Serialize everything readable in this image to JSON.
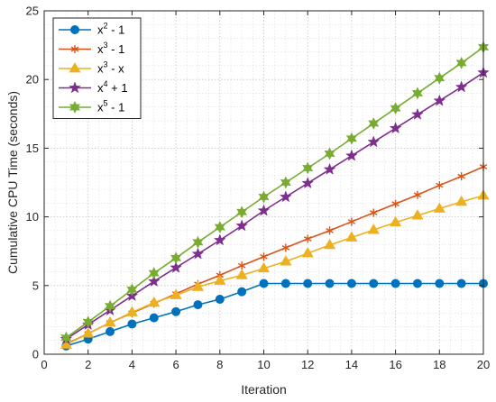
{
  "chart_data": {
    "type": "line",
    "title": "",
    "xlabel": "Iteration",
    "ylabel": "Cumulative CPU Time (seconds)",
    "xlim": [
      0,
      20
    ],
    "ylim": [
      0,
      25
    ],
    "xticks": [
      0,
      2,
      4,
      6,
      8,
      10,
      12,
      14,
      16,
      18,
      20
    ],
    "yticks": [
      0,
      5,
      10,
      15,
      20,
      25
    ],
    "grid": "major and minor, dotted",
    "legend_position": "top-left",
    "x": [
      1,
      2,
      3,
      4,
      5,
      6,
      7,
      8,
      9,
      10,
      11,
      12,
      13,
      14,
      15,
      16,
      17,
      18,
      19,
      20
    ],
    "series": [
      {
        "name": "x^2 - 1",
        "label_base": "x",
        "label_exp": "2",
        "label_rest": " - 1",
        "color": "#0072BD",
        "marker": "circle",
        "values": [
          0.6,
          1.1,
          1.65,
          2.2,
          2.65,
          3.1,
          3.6,
          4.0,
          4.55,
          5.15,
          5.15,
          5.15,
          5.15,
          5.15,
          5.15,
          5.15,
          5.15,
          5.15,
          5.15,
          5.15
        ]
      },
      {
        "name": "x^3 - 1",
        "label_base": "x",
        "label_exp": "3",
        "label_rest": " - 1",
        "color": "#D95319",
        "marker": "asterisk",
        "values": [
          0.75,
          1.5,
          2.3,
          3.0,
          3.7,
          4.4,
          5.1,
          5.75,
          6.45,
          7.1,
          7.75,
          8.4,
          9.0,
          9.65,
          10.3,
          10.95,
          11.6,
          12.3,
          12.95,
          13.65
        ]
      },
      {
        "name": "x^3 - x",
        "label_base": "x",
        "label_exp": "3",
        "label_rest": " - x",
        "color": "#EDB120",
        "marker": "triangle",
        "values": [
          0.7,
          1.5,
          2.3,
          3.05,
          3.75,
          4.3,
          4.9,
          5.35,
          5.75,
          6.25,
          6.75,
          7.35,
          7.95,
          8.5,
          9.05,
          9.6,
          10.1,
          10.6,
          11.1,
          11.55
        ]
      },
      {
        "name": "x^4 + 1",
        "label_base": "x",
        "label_exp": "4",
        "label_rest": " + 1",
        "color": "#7E2F8E",
        "marker": "star",
        "values": [
          1.1,
          2.15,
          3.2,
          4.25,
          5.3,
          6.3,
          7.3,
          8.3,
          9.35,
          10.45,
          11.45,
          12.45,
          13.45,
          14.45,
          15.45,
          16.45,
          17.45,
          18.45,
          19.45,
          20.5
        ]
      },
      {
        "name": "x^5 - 1",
        "label_base": "x",
        "label_exp": "5",
        "label_rest": " - 1",
        "color": "#77AC30",
        "marker": "hexagram",
        "values": [
          1.2,
          2.35,
          3.5,
          4.7,
          5.9,
          7.0,
          8.15,
          9.25,
          10.35,
          11.45,
          12.5,
          13.55,
          14.6,
          15.7,
          16.8,
          17.9,
          19.0,
          20.1,
          21.2,
          22.35
        ]
      }
    ]
  }
}
